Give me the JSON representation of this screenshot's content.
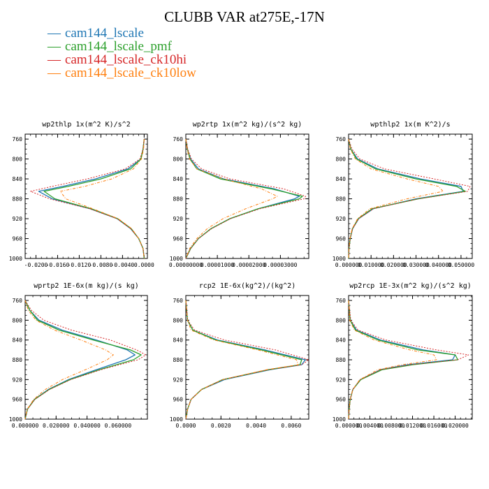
{
  "figure": {
    "title": "CLUBB VAR at275E,-17N",
    "legend": [
      {
        "label": "cam144_lscale",
        "color": "#1f77b4"
      },
      {
        "label": "cam144_lscale_pmf",
        "color": "#2ca02c"
      },
      {
        "label": "cam144_lscale_ck10hi",
        "color": "#d62728"
      },
      {
        "label": "cam144_lscale_ck10low",
        "color": "#ff7f0e"
      }
    ]
  },
  "chart_data": [
    {
      "type": "line",
      "title": "wp2thlp  1x(m^2 K)/s^2",
      "ylim": [
        1000,
        750
      ],
      "xlim": [
        -0.022,
        0.0006
      ],
      "yticks": [
        760,
        800,
        840,
        880,
        920,
        960,
        1000
      ],
      "yticklabels": [
        "760",
        "800",
        "840",
        "880",
        "920",
        "960",
        "1000"
      ],
      "xticks": [
        -0.02,
        -0.016,
        -0.012,
        -0.008,
        -0.004,
        0.0
      ],
      "xticklabels": [
        "-0.0200",
        "-0.0160",
        "-0.0120",
        "-0.0080",
        "-0.0040",
        "0.0000"
      ],
      "y": [
        760,
        780,
        800,
        820,
        840,
        855,
        865,
        880,
        900,
        920,
        940,
        960,
        980,
        1000
      ],
      "series": [
        {
          "name": "cam144_lscale",
          "values": [
            0.0,
            -0.0002,
            -0.0006,
            -0.003,
            -0.009,
            -0.015,
            -0.0195,
            -0.017,
            -0.01,
            -0.005,
            -0.0025,
            -0.001,
            -0.0002,
            0.0
          ]
        },
        {
          "name": "cam144_lscale_pmf",
          "values": [
            0.0,
            -0.0002,
            -0.0006,
            -0.0025,
            -0.008,
            -0.014,
            -0.0185,
            -0.0165,
            -0.0098,
            -0.0049,
            -0.0024,
            -0.001,
            -0.0002,
            0.0
          ]
        },
        {
          "name": "cam144_lscale_ck10hi",
          "values": [
            0.0,
            -0.0002,
            -0.0008,
            -0.0035,
            -0.0105,
            -0.017,
            -0.021,
            -0.0175,
            -0.0101,
            -0.005,
            -0.0025,
            -0.001,
            -0.0002,
            0.0
          ]
        },
        {
          "name": "cam144_lscale_ck10low",
          "values": [
            0.0,
            -0.0001,
            -0.0005,
            -0.002,
            -0.006,
            -0.011,
            -0.0155,
            -0.0145,
            -0.0095,
            -0.0048,
            -0.0023,
            -0.001,
            -0.0002,
            0.0
          ]
        }
      ]
    },
    {
      "type": "line",
      "title": "wp2rtp  1x(m^2 kg)/(s^2 kg)",
      "ylim": [
        1000,
        750
      ],
      "xlim": [
        0.0,
        3.9e-05
      ],
      "yticks": [
        760,
        800,
        840,
        880,
        920,
        960,
        1000
      ],
      "yticklabels": [
        "760",
        "800",
        "840",
        "880",
        "920",
        "960",
        "1000"
      ],
      "xticks": [
        0.0,
        1e-05,
        2e-05,
        3e-05
      ],
      "xticklabels": [
        "0.00000000",
        "0.00001000",
        "0.00002000",
        "0.00003000"
      ],
      "y": [
        760,
        780,
        800,
        820,
        840,
        860,
        875,
        880,
        900,
        920,
        940,
        960,
        980,
        1000
      ],
      "series": [
        {
          "name": "cam144_lscale",
          "values": [
            0.0,
            5e-07,
            1.5e-06,
            4e-06,
            1.2e-05,
            2.8e-05,
            3.6e-05,
            3.45e-05,
            2.3e-05,
            1.4e-05,
            8e-06,
            4e-06,
            1.5e-06,
            0.0
          ]
        },
        {
          "name": "cam144_lscale_pmf",
          "values": [
            0.0,
            5e-07,
            1.3e-06,
            3.5e-06,
            1.1e-05,
            2.7e-05,
            3.7e-05,
            3.6e-05,
            2.3e-05,
            1.4e-05,
            8e-06,
            4e-06,
            1.5e-06,
            0.0
          ]
        },
        {
          "name": "cam144_lscale_ck10hi",
          "values": [
            0.0,
            6e-07,
            1.8e-06,
            5e-06,
            1.4e-05,
            3.1e-05,
            3.8e-05,
            3.75e-05,
            2.35e-05,
            1.42e-05,
            8.2e-06,
            4e-06,
            1.5e-06,
            0.0
          ]
        },
        {
          "name": "cam144_lscale_ck10low",
          "values": [
            0.0,
            4e-07,
            1.2e-06,
            3.5e-06,
            1.2e-05,
            2.4e-05,
            2.9e-05,
            2.75e-05,
            1.9e-05,
            1.18e-05,
            6.8e-06,
            3.5e-06,
            1.2e-06,
            0.0
          ]
        }
      ]
    },
    {
      "type": "line",
      "title": "wpthlp2  1x(m K^2)/s",
      "ylim": [
        1000,
        750
      ],
      "xlim": [
        0.0,
        0.055
      ],
      "yticks": [
        760,
        800,
        840,
        880,
        920,
        960,
        1000
      ],
      "yticklabels": [
        "760",
        "800",
        "840",
        "880",
        "920",
        "960",
        "1000"
      ],
      "xticks": [
        0.0,
        0.01,
        0.02,
        0.03,
        0.04,
        0.05
      ],
      "xticklabels": [
        "0.000000",
        "0.010000",
        "0.020000",
        "0.030000",
        "0.040000",
        "0.050000"
      ],
      "y": [
        760,
        780,
        800,
        820,
        840,
        855,
        865,
        880,
        900,
        920,
        940,
        960,
        980,
        1000
      ],
      "series": [
        {
          "name": "cam144_lscale",
          "values": [
            0.0,
            0.001,
            0.004,
            0.013,
            0.032,
            0.05,
            0.051,
            0.03,
            0.011,
            0.0045,
            0.0018,
            0.0007,
            0.0002,
            0.0
          ]
        },
        {
          "name": "cam144_lscale_pmf",
          "values": [
            0.0,
            0.001,
            0.0035,
            0.012,
            0.03,
            0.048,
            0.052,
            0.031,
            0.0105,
            0.0043,
            0.0017,
            0.0007,
            0.0002,
            0.0
          ]
        },
        {
          "name": "cam144_lscale_ck10hi",
          "values": [
            0.0,
            0.0015,
            0.005,
            0.016,
            0.038,
            0.054,
            0.053,
            0.031,
            0.011,
            0.0045,
            0.0018,
            0.0007,
            0.0002,
            0.0
          ]
        },
        {
          "name": "cam144_lscale_ck10low",
          "values": [
            0.0,
            0.0008,
            0.003,
            0.01,
            0.026,
            0.04,
            0.042,
            0.026,
            0.0095,
            0.004,
            0.0016,
            0.0006,
            0.0002,
            0.0
          ]
        }
      ]
    },
    {
      "type": "line",
      "title": "wprtp2  1E-6x(m kg)/(s kg)",
      "ylim": [
        1000,
        750
      ],
      "xlim": [
        0.0,
        0.079
      ],
      "yticks": [
        760,
        800,
        840,
        880,
        920,
        960,
        1000
      ],
      "yticklabels": [
        "760",
        "800",
        "840",
        "880",
        "920",
        "960",
        "1000"
      ],
      "xticks": [
        0.0,
        0.02,
        0.04,
        0.06
      ],
      "xticklabels": [
        "0.000000",
        "0.020000",
        "0.040000",
        "0.060000"
      ],
      "y": [
        760,
        780,
        800,
        820,
        840,
        860,
        870,
        880,
        900,
        920,
        940,
        960,
        980,
        1000
      ],
      "series": [
        {
          "name": "cam144_lscale",
          "values": [
            0.0,
            0.003,
            0.009,
            0.024,
            0.046,
            0.066,
            0.071,
            0.065,
            0.046,
            0.028,
            0.015,
            0.006,
            0.0015,
            0.0
          ]
        },
        {
          "name": "cam144_lscale_pmf",
          "values": [
            0.0,
            0.003,
            0.008,
            0.022,
            0.044,
            0.068,
            0.075,
            0.07,
            0.048,
            0.029,
            0.0155,
            0.0062,
            0.0015,
            0.0
          ]
        },
        {
          "name": "cam144_lscale_ck10hi",
          "values": [
            0.0,
            0.004,
            0.012,
            0.03,
            0.055,
            0.072,
            0.078,
            0.073,
            0.049,
            0.0295,
            0.0158,
            0.0063,
            0.0015,
            0.0
          ]
        },
        {
          "name": "cam144_lscale_ck10low",
          "values": [
            0.0,
            0.002,
            0.007,
            0.019,
            0.036,
            0.052,
            0.057,
            0.053,
            0.039,
            0.024,
            0.013,
            0.0055,
            0.0013,
            0.0
          ]
        }
      ]
    },
    {
      "type": "line",
      "title": "rcp2  1E-6x(kg^2)/(kg^2)",
      "ylim": [
        1000,
        750
      ],
      "xlim": [
        0.0,
        0.007
      ],
      "yticks": [
        760,
        800,
        840,
        880,
        920,
        960,
        1000
      ],
      "yticklabels": [
        "760",
        "800",
        "840",
        "880",
        "920",
        "960",
        "1000"
      ],
      "xticks": [
        0.0,
        0.002,
        0.004,
        0.006
      ],
      "xticklabels": [
        "0.0000",
        "0.0020",
        "0.0040",
        "0.0060"
      ],
      "y": [
        760,
        800,
        820,
        840,
        860,
        880,
        890,
        900,
        920,
        940,
        960,
        980,
        1000
      ],
      "series": [
        {
          "name": "cam144_lscale",
          "values": [
            0.0,
            0.0001,
            0.0004,
            0.0018,
            0.0045,
            0.0068,
            0.0066,
            0.0048,
            0.0022,
            0.0009,
            0.0003,
            0.0001,
            0.0
          ]
        },
        {
          "name": "cam144_lscale_pmf",
          "values": [
            0.0,
            0.0001,
            0.0004,
            0.0017,
            0.0043,
            0.0066,
            0.0065,
            0.0047,
            0.0021,
            0.0009,
            0.0003,
            0.0001,
            0.0
          ]
        },
        {
          "name": "cam144_lscale_ck10hi",
          "values": [
            0.0,
            0.0001,
            0.0005,
            0.0022,
            0.0051,
            0.007,
            0.0066,
            0.0047,
            0.0021,
            0.0009,
            0.0003,
            0.0001,
            0.0
          ]
        },
        {
          "name": "cam144_lscale_ck10low",
          "values": [
            0.0,
            0.0001,
            0.0003,
            0.0016,
            0.0041,
            0.0063,
            0.0064,
            0.0046,
            0.0021,
            0.0009,
            0.0003,
            0.0001,
            0.0
          ]
        }
      ]
    },
    {
      "type": "line",
      "title": "wp2rcp  1E-3x(m^2 kg)/(s^2 kg)",
      "ylim": [
        1000,
        750
      ],
      "xlim": [
        0.0,
        0.0232
      ],
      "yticks": [
        760,
        800,
        840,
        880,
        920,
        960,
        1000
      ],
      "yticklabels": [
        "760",
        "800",
        "840",
        "880",
        "920",
        "960",
        "1000"
      ],
      "xticks": [
        0.0,
        0.004,
        0.008,
        0.012,
        0.016,
        0.02
      ],
      "xticklabels": [
        "0.000000",
        "0.004000",
        "0.008000",
        "0.012000",
        "0.016000",
        "0.020000"
      ],
      "y": [
        760,
        800,
        820,
        840,
        860,
        870,
        880,
        890,
        900,
        920,
        940,
        960,
        980,
        1000
      ],
      "series": [
        {
          "name": "cam144_lscale",
          "values": [
            0.0,
            0.0003,
            0.0015,
            0.006,
            0.014,
            0.02,
            0.0195,
            0.011,
            0.006,
            0.0022,
            0.0008,
            0.0003,
            0.0001,
            0.0
          ]
        },
        {
          "name": "cam144_lscale_pmf",
          "values": [
            0.0,
            0.0003,
            0.0013,
            0.0055,
            0.013,
            0.02,
            0.0205,
            0.012,
            0.0063,
            0.0023,
            0.0008,
            0.0003,
            0.0001,
            0.0
          ]
        },
        {
          "name": "cam144_lscale_ck10hi",
          "values": [
            0.0,
            0.0004,
            0.0018,
            0.007,
            0.0165,
            0.0225,
            0.0205,
            0.0115,
            0.006,
            0.0022,
            0.0008,
            0.0003,
            0.0001,
            0.0
          ]
        },
        {
          "name": "cam144_lscale_ck10low",
          "values": [
            0.0,
            0.0002,
            0.0011,
            0.0048,
            0.0115,
            0.016,
            0.0165,
            0.01,
            0.0055,
            0.0021,
            0.0008,
            0.0003,
            0.0001,
            0.0
          ]
        }
      ]
    }
  ]
}
